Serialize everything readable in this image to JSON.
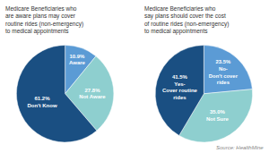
{
  "chart_data": [
    {
      "type": "pie",
      "title": "Medicare Beneficiaries who\nare aware plans may cover\nroutine rides (non-emergency)\nto medical appointments",
      "categories": [
        "Aware",
        "Not Aware",
        "Don't Know"
      ],
      "values": [
        10.9,
        27.8,
        61.2
      ],
      "value_labels": [
        "10.9%",
        "27.8%",
        "61.2%"
      ],
      "colors": [
        "#5b9bd5",
        "#8ecfcf",
        "#1a4f82"
      ],
      "data_labels": true
    },
    {
      "type": "pie",
      "title": "Medicare Beneficiaries who\nsay plans should cover the cost\nof routine rides (non-emergency)\nto medical appointments",
      "categories": [
        "No-\nDon't cover\nrides",
        "Not Sure",
        "Yes-\nCover routine\nrides"
      ],
      "values": [
        23.5,
        35.0,
        41.5
      ],
      "value_labels": [
        "23.5%",
        "35.0%",
        "41.5%"
      ],
      "colors": [
        "#5b9bd5",
        "#8ecfcf",
        "#1a4f82"
      ],
      "data_labels": true,
      "annotations": [
        "Source: HealthMine"
      ]
    }
  ]
}
